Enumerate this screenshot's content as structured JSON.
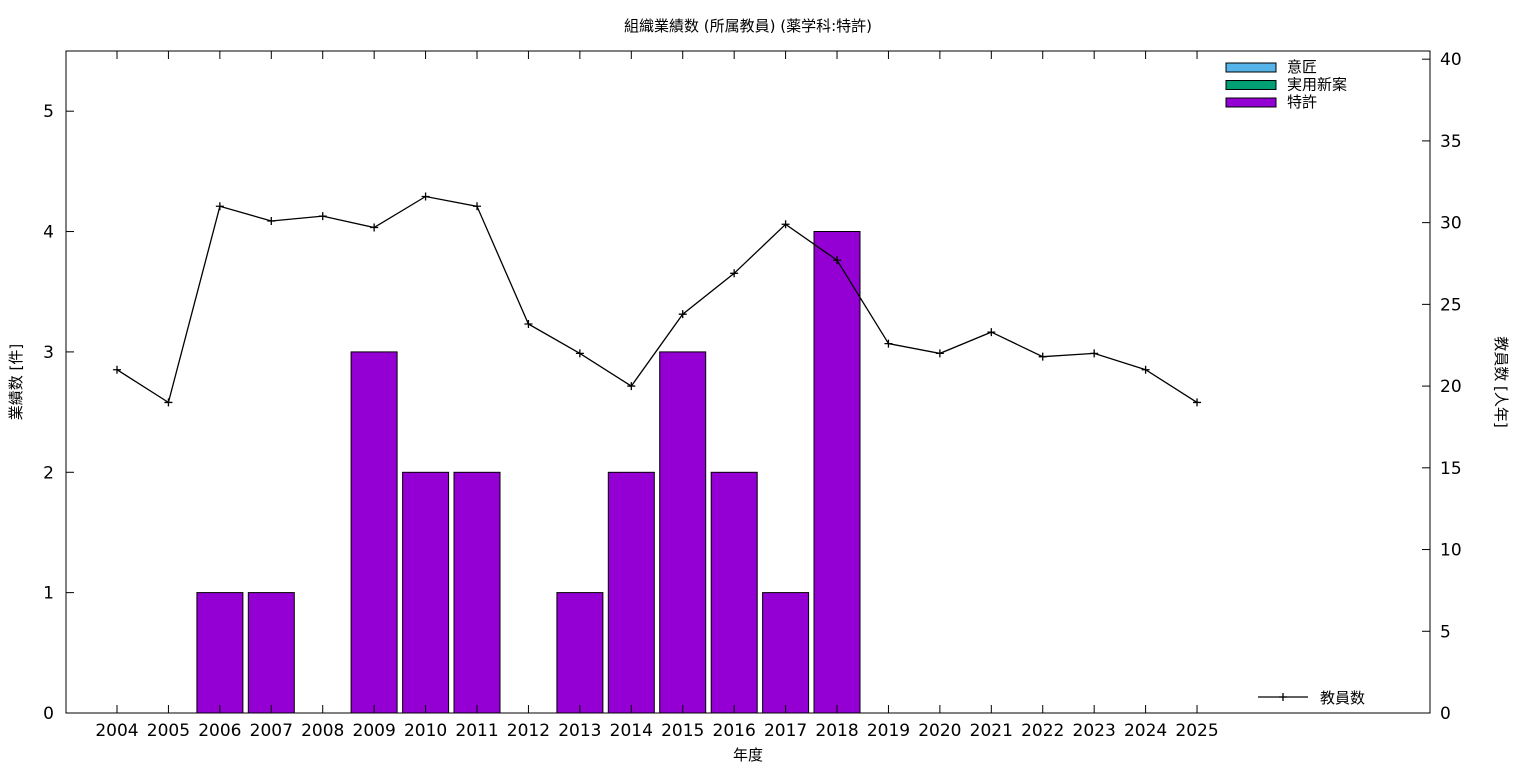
{
  "chart_data": {
    "type": "bar+line",
    "title": "組織業績数 (所属教員) (薬学科:特許)",
    "xlabel": "年度",
    "ylabel_left": "業績数 [件]",
    "ylabel_right": "教員数 [人年]",
    "categories": [
      "2004",
      "2005",
      "2006",
      "2007",
      "2008",
      "2009",
      "2010",
      "2011",
      "2012",
      "2013",
      "2014",
      "2015",
      "2016",
      "2017",
      "2018",
      "2019",
      "2020",
      "2021",
      "2022",
      "2023",
      "2024",
      "2025"
    ],
    "ylim_left": [
      0,
      5.5
    ],
    "yticks_left": [
      "0",
      "1",
      "2",
      "3",
      "4",
      "5"
    ],
    "ylim_right": [
      0,
      40.5
    ],
    "yticks_right": [
      "0",
      "5",
      "10",
      "15",
      "20",
      "25",
      "30",
      "35",
      "40"
    ],
    "bar_series": [
      {
        "name": "意匠",
        "color": "#56b4e9",
        "values": [
          0,
          0,
          0,
          0,
          0,
          0,
          0,
          0,
          0,
          0,
          0,
          0,
          0,
          0,
          0,
          0,
          0,
          0,
          0,
          0,
          0,
          0
        ]
      },
      {
        "name": "実用新案",
        "color": "#009e73",
        "values": [
          0,
          0,
          0,
          0,
          0,
          0,
          0,
          0,
          0,
          0,
          0,
          0,
          0,
          0,
          0,
          0,
          0,
          0,
          0,
          0,
          0,
          0
        ]
      },
      {
        "name": "特許",
        "color": "#9400d3",
        "values": [
          0,
          0,
          1,
          1,
          0,
          3,
          2,
          2,
          0,
          1,
          2,
          3,
          2,
          1,
          4,
          0,
          0,
          0,
          0,
          0,
          0,
          0
        ]
      }
    ],
    "line_series": {
      "name": "教員数",
      "color": "#000000",
      "values": [
        21,
        19,
        31,
        30.1,
        30.4,
        29.7,
        31.6,
        31,
        23.8,
        22,
        20,
        24.4,
        26.9,
        29.9,
        27.7,
        22.6,
        22,
        23.3,
        21.8,
        22,
        21,
        19
      ]
    },
    "legend_bars_placement": "top-right",
    "legend_line_placement": "bottom-right",
    "grid": false
  }
}
